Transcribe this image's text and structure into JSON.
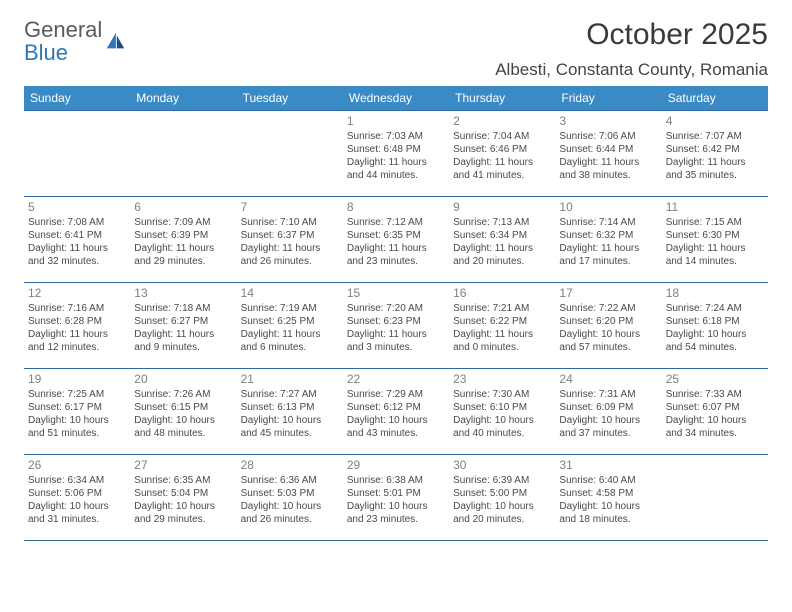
{
  "brand": {
    "name1": "General",
    "name2": "Blue"
  },
  "title": "October 2025",
  "location": "Albesti, Constanta County, Romania",
  "colors": {
    "header_bg": "#3a8ac6",
    "header_text": "#ffffff",
    "row_border": "#2f6aa0",
    "daynum": "#808080",
    "body_text": "#4a4a4a",
    "logo_gray": "#5a5a5a",
    "logo_blue": "#2f77b8"
  },
  "weekdays": [
    "Sunday",
    "Monday",
    "Tuesday",
    "Wednesday",
    "Thursday",
    "Friday",
    "Saturday"
  ],
  "weeks": [
    [
      null,
      null,
      null,
      {
        "d": "1",
        "sr": "7:03 AM",
        "ss": "6:48 PM",
        "dl": "11 hours and 44 minutes."
      },
      {
        "d": "2",
        "sr": "7:04 AM",
        "ss": "6:46 PM",
        "dl": "11 hours and 41 minutes."
      },
      {
        "d": "3",
        "sr": "7:06 AM",
        "ss": "6:44 PM",
        "dl": "11 hours and 38 minutes."
      },
      {
        "d": "4",
        "sr": "7:07 AM",
        "ss": "6:42 PM",
        "dl": "11 hours and 35 minutes."
      }
    ],
    [
      {
        "d": "5",
        "sr": "7:08 AM",
        "ss": "6:41 PM",
        "dl": "11 hours and 32 minutes."
      },
      {
        "d": "6",
        "sr": "7:09 AM",
        "ss": "6:39 PM",
        "dl": "11 hours and 29 minutes."
      },
      {
        "d": "7",
        "sr": "7:10 AM",
        "ss": "6:37 PM",
        "dl": "11 hours and 26 minutes."
      },
      {
        "d": "8",
        "sr": "7:12 AM",
        "ss": "6:35 PM",
        "dl": "11 hours and 23 minutes."
      },
      {
        "d": "9",
        "sr": "7:13 AM",
        "ss": "6:34 PM",
        "dl": "11 hours and 20 minutes."
      },
      {
        "d": "10",
        "sr": "7:14 AM",
        "ss": "6:32 PM",
        "dl": "11 hours and 17 minutes."
      },
      {
        "d": "11",
        "sr": "7:15 AM",
        "ss": "6:30 PM",
        "dl": "11 hours and 14 minutes."
      }
    ],
    [
      {
        "d": "12",
        "sr": "7:16 AM",
        "ss": "6:28 PM",
        "dl": "11 hours and 12 minutes."
      },
      {
        "d": "13",
        "sr": "7:18 AM",
        "ss": "6:27 PM",
        "dl": "11 hours and 9 minutes."
      },
      {
        "d": "14",
        "sr": "7:19 AM",
        "ss": "6:25 PM",
        "dl": "11 hours and 6 minutes."
      },
      {
        "d": "15",
        "sr": "7:20 AM",
        "ss": "6:23 PM",
        "dl": "11 hours and 3 minutes."
      },
      {
        "d": "16",
        "sr": "7:21 AM",
        "ss": "6:22 PM",
        "dl": "11 hours and 0 minutes."
      },
      {
        "d": "17",
        "sr": "7:22 AM",
        "ss": "6:20 PM",
        "dl": "10 hours and 57 minutes."
      },
      {
        "d": "18",
        "sr": "7:24 AM",
        "ss": "6:18 PM",
        "dl": "10 hours and 54 minutes."
      }
    ],
    [
      {
        "d": "19",
        "sr": "7:25 AM",
        "ss": "6:17 PM",
        "dl": "10 hours and 51 minutes."
      },
      {
        "d": "20",
        "sr": "7:26 AM",
        "ss": "6:15 PM",
        "dl": "10 hours and 48 minutes."
      },
      {
        "d": "21",
        "sr": "7:27 AM",
        "ss": "6:13 PM",
        "dl": "10 hours and 45 minutes."
      },
      {
        "d": "22",
        "sr": "7:29 AM",
        "ss": "6:12 PM",
        "dl": "10 hours and 43 minutes."
      },
      {
        "d": "23",
        "sr": "7:30 AM",
        "ss": "6:10 PM",
        "dl": "10 hours and 40 minutes."
      },
      {
        "d": "24",
        "sr": "7:31 AM",
        "ss": "6:09 PM",
        "dl": "10 hours and 37 minutes."
      },
      {
        "d": "25",
        "sr": "7:33 AM",
        "ss": "6:07 PM",
        "dl": "10 hours and 34 minutes."
      }
    ],
    [
      {
        "d": "26",
        "sr": "6:34 AM",
        "ss": "5:06 PM",
        "dl": "10 hours and 31 minutes."
      },
      {
        "d": "27",
        "sr": "6:35 AM",
        "ss": "5:04 PM",
        "dl": "10 hours and 29 minutes."
      },
      {
        "d": "28",
        "sr": "6:36 AM",
        "ss": "5:03 PM",
        "dl": "10 hours and 26 minutes."
      },
      {
        "d": "29",
        "sr": "6:38 AM",
        "ss": "5:01 PM",
        "dl": "10 hours and 23 minutes."
      },
      {
        "d": "30",
        "sr": "6:39 AM",
        "ss": "5:00 PM",
        "dl": "10 hours and 20 minutes."
      },
      {
        "d": "31",
        "sr": "6:40 AM",
        "ss": "4:58 PM",
        "dl": "10 hours and 18 minutes."
      },
      null
    ]
  ],
  "labels": {
    "sunrise": "Sunrise:",
    "sunset": "Sunset:",
    "daylight": "Daylight:"
  }
}
